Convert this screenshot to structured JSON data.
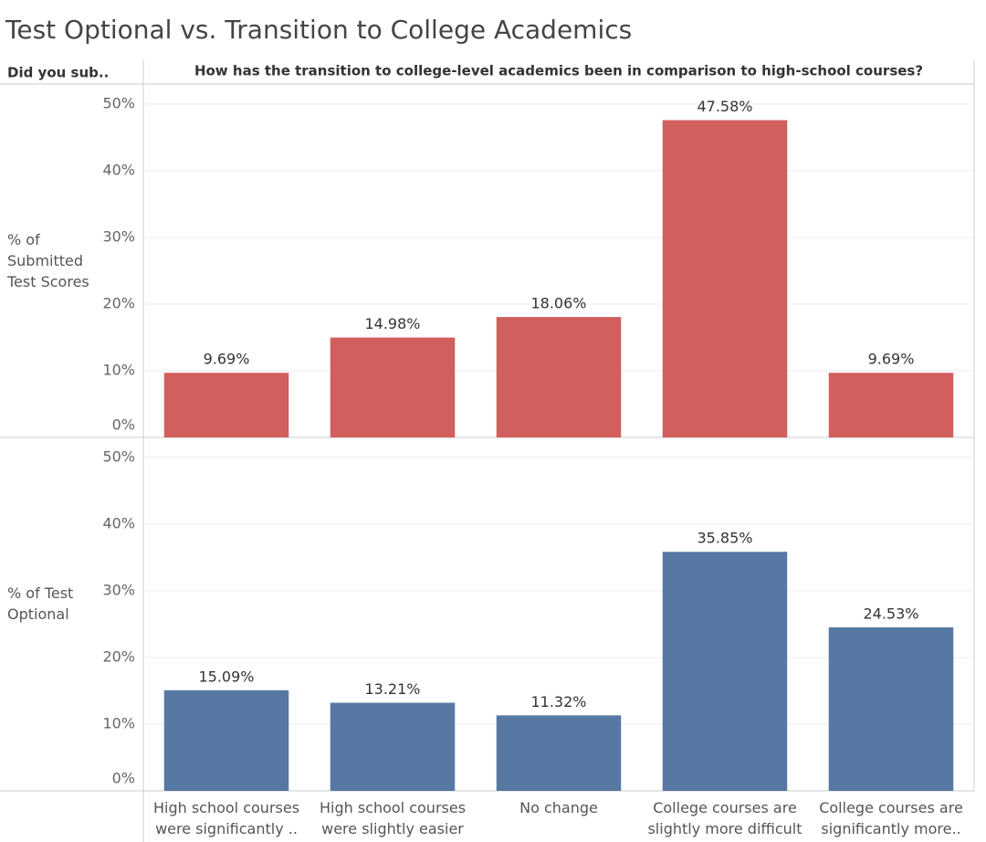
{
  "title": "Test Optional vs. Transition to College Academics",
  "row_header": "Did you sub..",
  "column_header": "How has the transition to college-level academics been in comparison to high-school courses?",
  "chart_data": [
    {
      "type": "bar",
      "ylabel": "% of Submitted Test Scores",
      "color": "#d15f5e",
      "values": [
        9.69,
        14.98,
        18.06,
        47.58,
        9.69
      ],
      "value_labels": [
        "9.69%",
        "14.98%",
        "18.06%",
        "47.58%",
        "9.69%"
      ],
      "ylim": [
        0,
        53
      ],
      "yticks": [
        {
          "value": 0,
          "label": "0%"
        },
        {
          "value": 10,
          "label": "10%"
        },
        {
          "value": 20,
          "label": "20%"
        },
        {
          "value": 30,
          "label": "30%"
        },
        {
          "value": 40,
          "label": "40%"
        },
        {
          "value": 50,
          "label": "50%"
        }
      ],
      "grid": true
    },
    {
      "type": "bar",
      "ylabel": "% of Test Optional",
      "color": "#5878a4",
      "categories": [
        "High school courses were significantly ..",
        "High school courses were slightly easier",
        "No change",
        "College courses are slightly more difficult",
        "College courses are significantly more.."
      ],
      "values": [
        15.09,
        13.21,
        11.32,
        35.85,
        24.53
      ],
      "value_labels": [
        "15.09%",
        "13.21%",
        "11.32%",
        "35.85%",
        "24.53%"
      ],
      "ylim": [
        0,
        53
      ],
      "yticks": [
        {
          "value": 0,
          "label": "0%"
        },
        {
          "value": 10,
          "label": "10%"
        },
        {
          "value": 20,
          "label": "20%"
        },
        {
          "value": 30,
          "label": "30%"
        },
        {
          "value": 40,
          "label": "40%"
        },
        {
          "value": 50,
          "label": "50%"
        }
      ],
      "grid": true
    }
  ]
}
